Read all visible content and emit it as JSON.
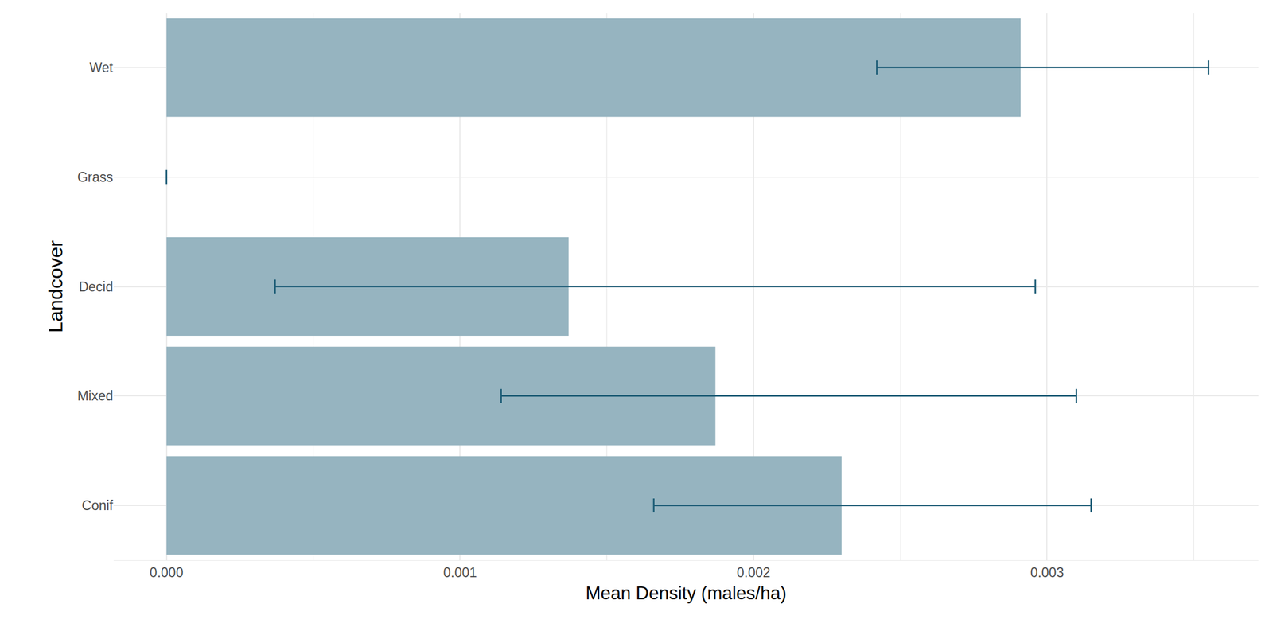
{
  "chart_data": {
    "type": "bar",
    "orientation": "horizontal",
    "x_label": "Mean Density (males/ha)",
    "y_label": "Landcover",
    "categories": [
      "Conif",
      "Mixed",
      "Decid",
      "Grass",
      "Wet"
    ],
    "values": [
      0.0023,
      0.00187,
      0.00137,
      0,
      0.00291
    ],
    "error_low": [
      0.00166,
      0.00114,
      0.00037,
      0,
      0.00242
    ],
    "error_high": [
      0.00315,
      0.0031,
      0.00296,
      0,
      0.00355
    ],
    "color": "#96b4c0",
    "error_color": "#1a5a74",
    "xlim": [
      -0.00018,
      0.00372
    ],
    "xticks": [
      {
        "value": 0,
        "label": "0.000"
      },
      {
        "value": 0.001,
        "label": "0.001"
      },
      {
        "value": 0.002,
        "label": "0.002"
      },
      {
        "value": 0.003,
        "label": "0.003"
      }
    ],
    "grid": true
  }
}
